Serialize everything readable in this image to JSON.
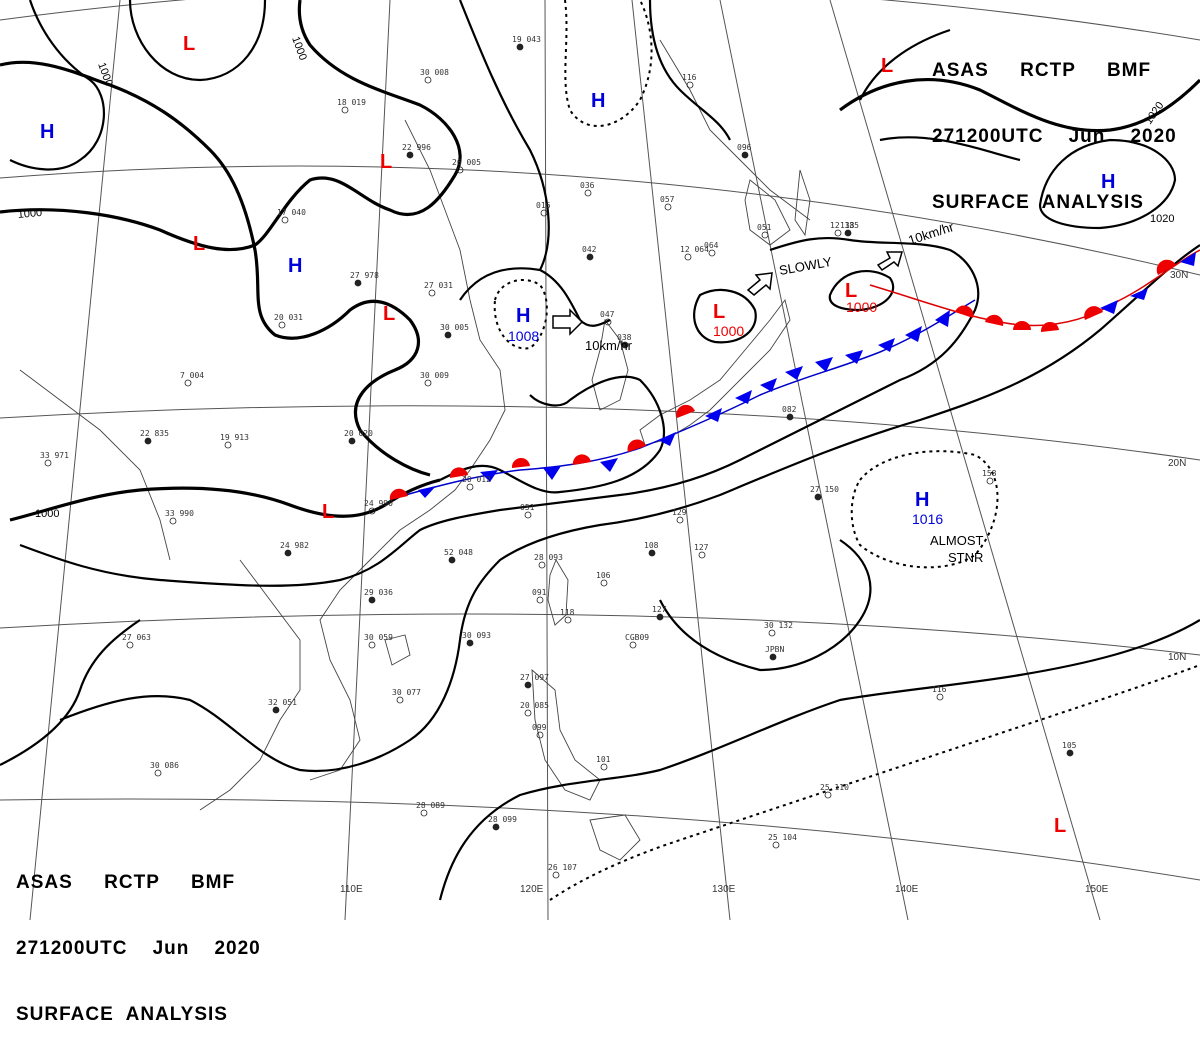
{
  "header_top": {
    "line1": "ASAS     RCTP     BMF",
    "line2": "271200UTC    Jun    2020",
    "line3": "SURFACE  ANALYSIS"
  },
  "header_bottom": {
    "line1": "ASAS     RCTP     BMF",
    "line2": "271200UTC    Jun    2020",
    "line3": "SURFACE  ANALYSIS"
  },
  "longitude_labels": [
    "110E",
    "120E",
    "130E",
    "140E",
    "150E"
  ],
  "latitude_labels": [
    "30N",
    "20N",
    "10N"
  ],
  "isobar_labels": [
    "1000",
    "1000",
    "1000",
    "1000",
    "1020",
    "1020"
  ],
  "pressure_systems": [
    {
      "type": "L",
      "value": ""
    },
    {
      "type": "L",
      "value": ""
    },
    {
      "type": "L",
      "value": ""
    },
    {
      "type": "L",
      "value": ""
    },
    {
      "type": "L",
      "value": ""
    },
    {
      "type": "L",
      "value": "1000"
    },
    {
      "type": "L",
      "value": "1000"
    },
    {
      "type": "L",
      "value": ""
    },
    {
      "type": "L",
      "value": ""
    },
    {
      "type": "H",
      "value": ""
    },
    {
      "type": "H",
      "value": ""
    },
    {
      "type": "H",
      "value": ""
    },
    {
      "type": "H",
      "value": "1008"
    },
    {
      "type": "H",
      "value": ""
    },
    {
      "type": "H",
      "value": "1016"
    }
  ],
  "movement_labels": [
    "10km/hr",
    "SLOWLY",
    "10km/hr",
    "ALMOST",
    "STNR"
  ],
  "station_samples": [
    "19 043",
    "30 008",
    "18 019",
    "22 996",
    "26 005",
    "17 040",
    "27 978",
    "20 031",
    "27 031",
    "30 005",
    "7 004",
    "30 009",
    "22 835",
    "33 971",
    "19 913",
    "20 020",
    "24 990",
    "33 990",
    "24 982",
    "20 012",
    "051",
    "52 048",
    "28 093",
    "091",
    "29 036",
    "30 059",
    "27 063",
    "30 093",
    "118",
    "106",
    "108",
    "127",
    "30 077",
    "32 051",
    "30 086",
    "28 089",
    "28 099",
    "26 107",
    "101",
    "27 097",
    "20 085",
    "099",
    "127",
    "30 132",
    "116",
    "105",
    "25 110",
    "25 104",
    "27 150",
    "158",
    "129",
    "082",
    "051",
    "064",
    "096",
    "057",
    "036",
    "042",
    "016",
    "047",
    "038",
    "116",
    "12 135",
    "138",
    "12 064",
    "CGB09",
    "JPBN"
  ],
  "colors": {
    "high": "#0000dd",
    "low": "#ee0000",
    "isobar": "#000000",
    "front_cold": "#0000ee",
    "front_warm": "#ee0000"
  }
}
